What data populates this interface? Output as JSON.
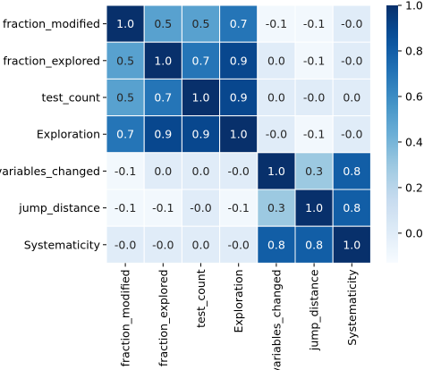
{
  "chart_data": {
    "type": "heatmap",
    "title": "",
    "xlabel": "",
    "ylabel": "",
    "rows": [
      "fraction_modified",
      "fraction_explored",
      "test_count",
      "Exploration",
      "variables_changed",
      "jump_distance",
      "Systematicity"
    ],
    "columns": [
      "fraction_modified",
      "fraction_explored",
      "test_count",
      "Exploration",
      "variables_changed",
      "jump_distance",
      "Systematicity"
    ],
    "values": [
      [
        1.0,
        0.5,
        0.5,
        0.7,
        -0.1,
        -0.1,
        -0.0
      ],
      [
        0.5,
        1.0,
        0.7,
        0.9,
        0.0,
        -0.1,
        -0.0
      ],
      [
        0.5,
        0.7,
        1.0,
        0.9,
        0.0,
        -0.0,
        0.0
      ],
      [
        0.7,
        0.9,
        0.9,
        1.0,
        -0.0,
        -0.1,
        -0.0
      ],
      [
        -0.1,
        0.0,
        0.0,
        -0.0,
        1.0,
        0.3,
        0.8
      ],
      [
        -0.1,
        -0.1,
        -0.0,
        -0.1,
        0.3,
        1.0,
        0.8
      ],
      [
        -0.0,
        -0.0,
        0.0,
        -0.0,
        0.8,
        0.8,
        1.0
      ]
    ],
    "value_labels": [
      [
        "1.0",
        "0.5",
        "0.5",
        "0.7",
        "-0.1",
        "-0.1",
        "-0.0"
      ],
      [
        "0.5",
        "1.0",
        "0.7",
        "0.9",
        "0.0",
        "-0.1",
        "-0.0"
      ],
      [
        "0.5",
        "0.7",
        "1.0",
        "0.9",
        "0.0",
        "-0.0",
        "0.0"
      ],
      [
        "0.7",
        "0.9",
        "0.9",
        "1.0",
        "-0.0",
        "-0.1",
        "-0.0"
      ],
      [
        "-0.1",
        "0.0",
        "0.0",
        "-0.0",
        "1.0",
        "0.3",
        "0.8"
      ],
      [
        "-0.1",
        "-0.1",
        "-0.0",
        "-0.1",
        "0.3",
        "1.0",
        "0.8"
      ],
      [
        "-0.0",
        "-0.0",
        "0.0",
        "-0.0",
        "0.8",
        "0.8",
        "1.0"
      ]
    ],
    "colorbar": {
      "colormap": "Blues",
      "vmin": -0.13,
      "vmax": 1.0,
      "ticks": [
        0.0,
        0.2,
        0.4,
        0.6,
        0.8,
        1.0
      ],
      "tick_labels": [
        "0.0",
        "0.2",
        "0.4",
        "0.6",
        "0.8",
        "1.0"
      ]
    },
    "grid_line_color": "#ffffff",
    "text_color_dark": "#262626",
    "text_color_light": "#ffffff"
  }
}
